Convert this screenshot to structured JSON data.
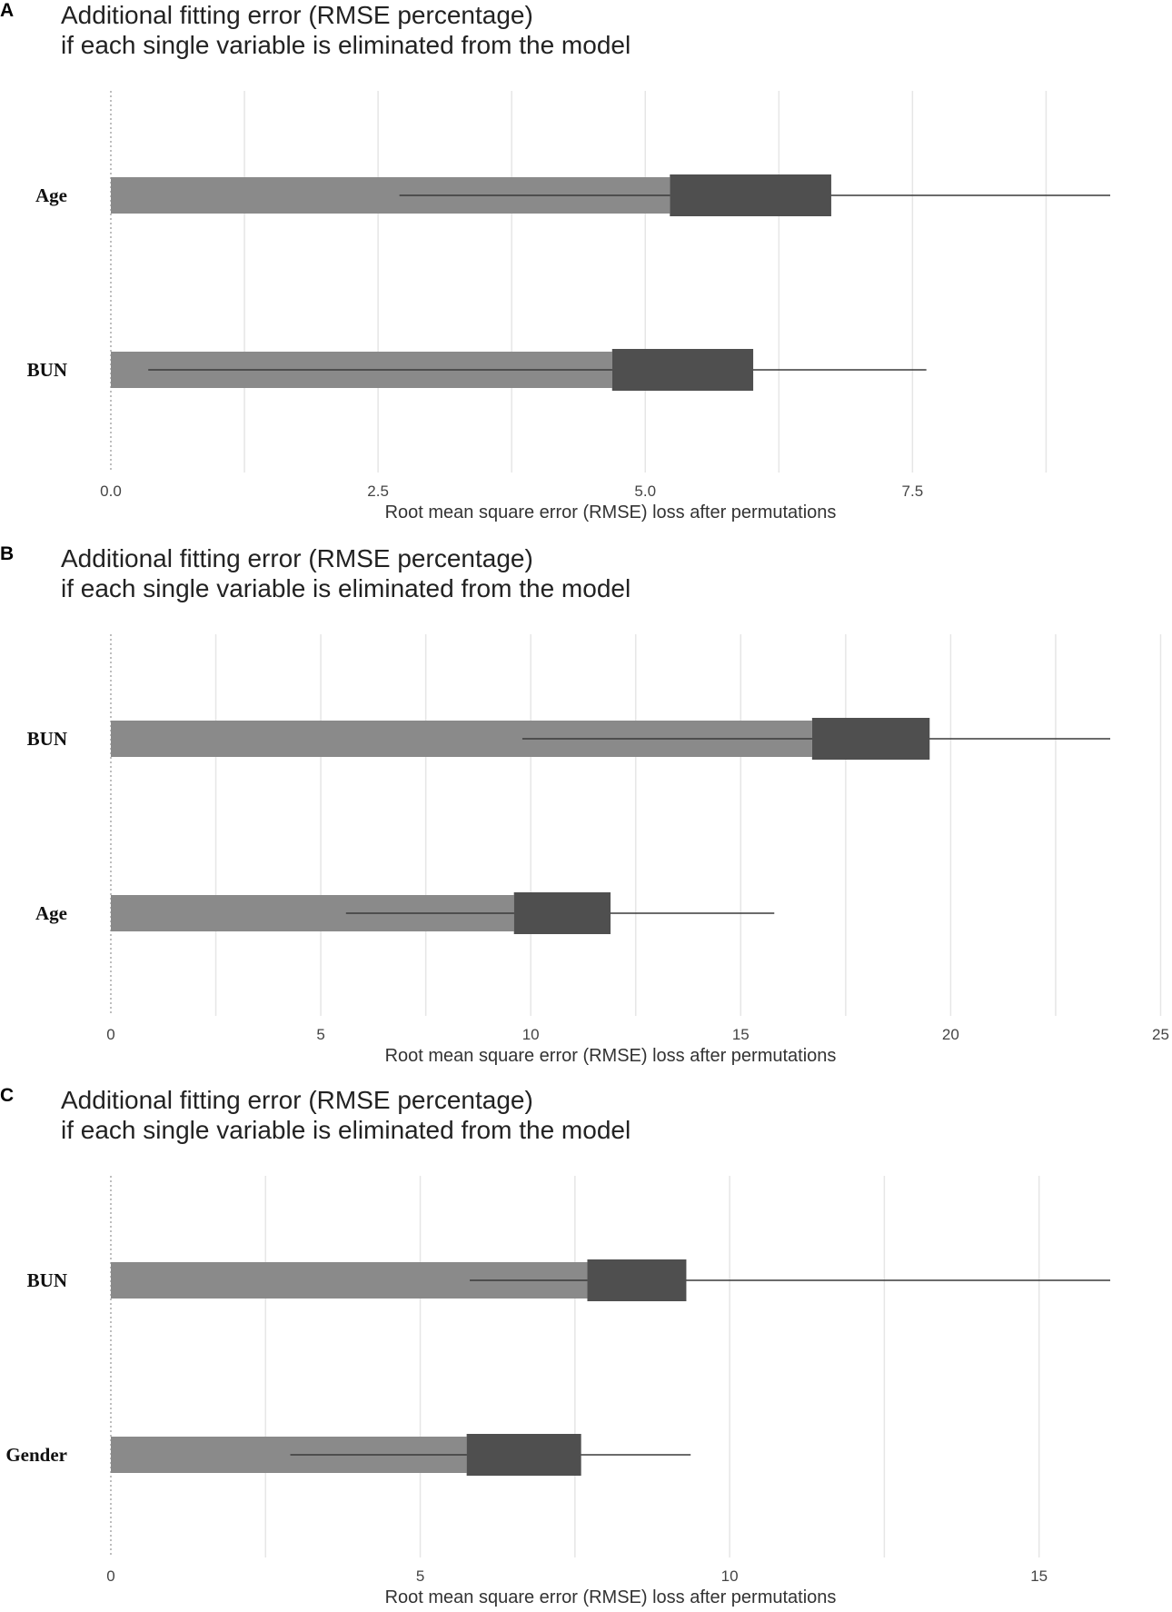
{
  "colors": {
    "bar": "#8a8a8a",
    "box": "#4f4f4f",
    "whisker": "#3a3a3a",
    "grid": "#e6e6e6",
    "baseline": "#9a9a9a"
  },
  "chart_data": [
    {
      "type": "bar",
      "panel": "A",
      "title_line1": "Additional fitting error (RMSE percentage)",
      "title_line2": "if each single variable is eliminated from the model",
      "xlabel": "Root mean square error (RMSE) loss after permutations",
      "xlim": [
        0,
        9.35
      ],
      "xticks": [
        0,
        2.5,
        5,
        7.5
      ],
      "xtick_labels": [
        "0.0",
        "2.5",
        "5.0",
        "7.5"
      ],
      "minor_grid": [
        1.25,
        3.75,
        6.25,
        8.75
      ],
      "series": [
        {
          "name": "Age",
          "bar": 5.23,
          "box_low": 5.23,
          "box_high": 6.74,
          "whisker_low": 2.7,
          "whisker_high": 9.35
        },
        {
          "name": "BUN",
          "bar": 4.69,
          "box_low": 4.69,
          "box_high": 6.01,
          "whisker_low": 0.35,
          "whisker_high": 7.63
        }
      ]
    },
    {
      "type": "bar",
      "panel": "B",
      "title_line1": "Additional fitting error (RMSE percentage)",
      "title_line2": "if each single variable is eliminated from the model",
      "xlabel": "Root mean square error (RMSE) loss after permutations",
      "xlim": [
        0,
        23.8
      ],
      "xticks": [
        0,
        5,
        10,
        15,
        20,
        25
      ],
      "xtick_labels": [
        "0",
        "5",
        "10",
        "15",
        "20",
        "25"
      ],
      "minor_grid": [
        2.5,
        7.5,
        12.5,
        17.5,
        22.5
      ],
      "series": [
        {
          "name": "BUN",
          "bar": 16.7,
          "box_low": 16.7,
          "box_high": 19.5,
          "whisker_low": 9.8,
          "whisker_high": 23.8
        },
        {
          "name": "Age",
          "bar": 9.6,
          "box_low": 9.6,
          "box_high": 11.9,
          "whisker_low": 5.6,
          "whisker_high": 15.8
        }
      ]
    },
    {
      "type": "bar",
      "panel": "C",
      "title_line1": "Additional fitting error (RMSE percentage)",
      "title_line2": "if each single variable is eliminated from the model",
      "xlabel": "Root mean square error (RMSE) loss after permutations",
      "xlim": [
        0,
        16.15
      ],
      "xticks": [
        0,
        5,
        10,
        15
      ],
      "xtick_labels": [
        "0",
        "5",
        "10",
        "15"
      ],
      "minor_grid": [
        2.5,
        7.5,
        12.5,
        17.5
      ],
      "series": [
        {
          "name": "BUN",
          "bar": 7.7,
          "box_low": 7.7,
          "box_high": 9.3,
          "whisker_low": 5.8,
          "whisker_high": 16.15
        },
        {
          "name": "Gender",
          "bar": 5.75,
          "box_low": 5.75,
          "box_high": 7.6,
          "whisker_low": 2.9,
          "whisker_high": 9.37
        }
      ]
    }
  ]
}
